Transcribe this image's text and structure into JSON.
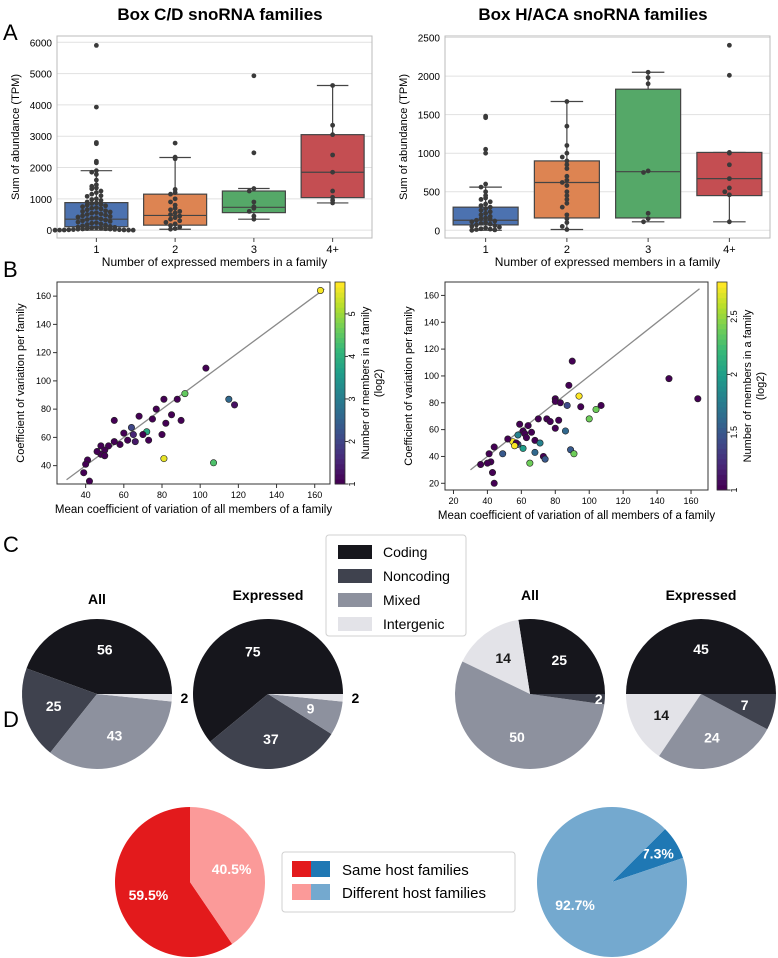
{
  "panel_labels": {
    "a": "A",
    "b": "B",
    "c": "C",
    "d": "D"
  },
  "colors": {
    "box_1": "#4c72b0",
    "box_2": "#dd8452",
    "box_3": "#55a868",
    "box_4": "#c44e52",
    "coding": "#16161c",
    "noncoding": "#3f424e",
    "mixed": "#8d919e",
    "intergenic": "#e3e3e8",
    "same_cd": "#e31a1c",
    "diff_cd": "#fb9a99",
    "same_haca": "#1f78b4",
    "diff_haca": "#74a9cf",
    "diagonal": "#8a8a8a",
    "grid": "#e1e1e1"
  },
  "legend_c": {
    "items": [
      "Coding",
      "Noncoding",
      "Mixed",
      "Intergenic"
    ]
  },
  "legend_d": {
    "items": [
      "Same host families",
      "Different host families"
    ]
  },
  "chart_data": [
    {
      "id": "a_left",
      "type": "box",
      "title": "Box C/D snoRNA families",
      "xlabel": "Number of expressed members in a family",
      "ylabel": "Sum of abundance (TPM)",
      "ylim": [
        -250,
        6200
      ],
      "yticks": [
        0,
        1000,
        2000,
        3000,
        4000,
        5000,
        6000
      ],
      "categories": [
        "1",
        "2",
        "3",
        "4+"
      ],
      "boxes": [
        {
          "q1": 110,
          "median": 350,
          "q3": 880,
          "whislo": 0,
          "whishi": 1900
        },
        {
          "q1": 160,
          "median": 470,
          "q3": 1150,
          "whislo": 30,
          "whishi": 2320
        },
        {
          "q1": 560,
          "median": 730,
          "q3": 1250,
          "whislo": 350,
          "whishi": 1330
        },
        {
          "q1": 1040,
          "median": 1850,
          "q3": 3050,
          "whislo": 870,
          "whishi": 4620
        }
      ],
      "points": [
        [
          5900,
          3930,
          2800,
          2760,
          2200,
          2150,
          1900,
          1850,
          1780,
          1600,
          1450,
          1400,
          1350,
          1320,
          1250,
          1200,
          1150,
          1100,
          1080,
          1000,
          980,
          950,
          900,
          870,
          850,
          820,
          800,
          780,
          750,
          720,
          700,
          680,
          650,
          620,
          600,
          580,
          560,
          540,
          520,
          500,
          480,
          460,
          440,
          420,
          400,
          380,
          360,
          340,
          320,
          300,
          280,
          260,
          240,
          220,
          200,
          180,
          160,
          140,
          120,
          100,
          90,
          80,
          70,
          60,
          50,
          45,
          40,
          35,
          30,
          25,
          20,
          15,
          10,
          8,
          5,
          3,
          2,
          1,
          0
        ],
        [
          2780,
          2330,
          2280,
          1300,
          1200,
          1150,
          1000,
          900,
          800,
          700,
          650,
          600,
          550,
          500,
          450,
          400,
          350,
          300,
          250,
          200,
          150,
          100,
          50,
          30
        ],
        [
          4930,
          2470,
          1330,
          1250,
          900,
          750,
          700,
          600,
          450,
          350
        ],
        [
          4620,
          3350,
          3050,
          2400,
          1850,
          1250,
          1050,
          950,
          870
        ]
      ]
    },
    {
      "id": "a_right",
      "type": "box",
      "title": "Box H/ACA snoRNA families",
      "xlabel": "Number of expressed members in a family",
      "ylabel": "Sum of abundance (TPM)",
      "ylim": [
        -100,
        2520
      ],
      "yticks": [
        0,
        500,
        1000,
        1500,
        2000,
        2500
      ],
      "categories": [
        "1",
        "2",
        "3",
        "4+"
      ],
      "boxes": [
        {
          "q1": 70,
          "median": 130,
          "q3": 300,
          "whislo": 0,
          "whishi": 560
        },
        {
          "q1": 160,
          "median": 620,
          "q3": 900,
          "whislo": 10,
          "whishi": 1670
        },
        {
          "q1": 160,
          "median": 760,
          "q3": 1830,
          "whislo": 110,
          "whishi": 2050
        },
        {
          "q1": 450,
          "median": 670,
          "q3": 1010,
          "whislo": 110,
          "whishi": 1010
        }
      ],
      "points": [
        [
          1480,
          1460,
          1050,
          1000,
          600,
          560,
          500,
          450,
          420,
          400,
          370,
          340,
          320,
          300,
          280,
          260,
          240,
          220,
          200,
          180,
          160,
          150,
          140,
          130,
          120,
          110,
          100,
          90,
          80,
          70,
          60,
          50,
          40,
          30,
          20,
          15,
          10,
          5,
          0
        ],
        [
          1670,
          1350,
          1100,
          1000,
          950,
          900,
          850,
          800,
          700,
          650,
          620,
          580,
          500,
          450,
          400,
          350,
          300,
          200,
          150,
          100,
          50,
          10
        ],
        [
          2050,
          1980,
          1900,
          770,
          750,
          220,
          150,
          110
        ],
        [
          2400,
          2010,
          1010,
          1000,
          850,
          670,
          550,
          500,
          460,
          110
        ]
      ]
    },
    {
      "id": "b_left",
      "type": "scatter",
      "xlabel": "Mean coefficient of variation of all members of a family",
      "ylabel": "Coefficient of variation per family",
      "xlim": [
        25,
        168
      ],
      "ylim": [
        27,
        170
      ],
      "xticks": [
        40,
        60,
        80,
        100,
        120,
        140,
        160
      ],
      "yticks": [
        40,
        60,
        80,
        100,
        120,
        140,
        160
      ],
      "diagonal": [
        [
          30,
          30
        ],
        [
          165,
          165
        ]
      ],
      "colorbar": {
        "label": "Number of members in a family (log2)",
        "min": 1,
        "max": 5.75,
        "ticks": [
          1,
          2,
          3,
          4,
          5
        ]
      },
      "points": [
        {
          "x": 163,
          "y": 164,
          "c": 5.7
        },
        {
          "x": 103,
          "y": 109,
          "c": 1.0
        },
        {
          "x": 92,
          "y": 91,
          "c": 4.6
        },
        {
          "x": 115,
          "y": 87,
          "c": 2.6
        },
        {
          "x": 118,
          "y": 83,
          "c": 1.2
        },
        {
          "x": 81,
          "y": 87,
          "c": 1.0
        },
        {
          "x": 77,
          "y": 80,
          "c": 1.0
        },
        {
          "x": 88,
          "y": 87,
          "c": 1.0
        },
        {
          "x": 85,
          "y": 76,
          "c": 1.0
        },
        {
          "x": 90,
          "y": 72,
          "c": 1.0
        },
        {
          "x": 75,
          "y": 73,
          "c": 1.0
        },
        {
          "x": 82,
          "y": 70,
          "c": 1.0
        },
        {
          "x": 68,
          "y": 75,
          "c": 1.0
        },
        {
          "x": 55,
          "y": 72,
          "c": 1.0
        },
        {
          "x": 72,
          "y": 64,
          "c": 3.9
        },
        {
          "x": 64,
          "y": 67,
          "c": 2.0
        },
        {
          "x": 65,
          "y": 62,
          "c": 1.5
        },
        {
          "x": 60,
          "y": 63,
          "c": 1.0
        },
        {
          "x": 70,
          "y": 62,
          "c": 1.0
        },
        {
          "x": 80,
          "y": 62,
          "c": 1.0
        },
        {
          "x": 62,
          "y": 58,
          "c": 1.0
        },
        {
          "x": 66,
          "y": 57,
          "c": 1.3
        },
        {
          "x": 58,
          "y": 55,
          "c": 1.0
        },
        {
          "x": 55,
          "y": 57,
          "c": 1.0
        },
        {
          "x": 52,
          "y": 54,
          "c": 1.0
        },
        {
          "x": 48,
          "y": 54,
          "c": 1.0
        },
        {
          "x": 50,
          "y": 51,
          "c": 1.0
        },
        {
          "x": 48,
          "y": 48,
          "c": 1.0
        },
        {
          "x": 50,
          "y": 47,
          "c": 1.0
        },
        {
          "x": 46,
          "y": 50,
          "c": 1.0
        },
        {
          "x": 41,
          "y": 44,
          "c": 1.0
        },
        {
          "x": 40,
          "y": 41,
          "c": 1.0
        },
        {
          "x": 39,
          "y": 35,
          "c": 1.0
        },
        {
          "x": 42,
          "y": 29,
          "c": 1.0
        },
        {
          "x": 81,
          "y": 45,
          "c": 5.6
        },
        {
          "x": 107,
          "y": 42,
          "c": 4.4
        },
        {
          "x": 73,
          "y": 58,
          "c": 1.0
        }
      ]
    },
    {
      "id": "b_right",
      "type": "scatter",
      "xlabel": "Mean coefficient of variation of all members of a family",
      "ylabel": "Coefficient of variation per family",
      "xlim": [
        15,
        170
      ],
      "ylim": [
        15,
        170
      ],
      "xticks": [
        20,
        40,
        60,
        80,
        100,
        120,
        140,
        160
      ],
      "yticks": [
        20,
        40,
        60,
        80,
        100,
        120,
        140,
        160
      ],
      "diagonal": [
        [
          30,
          30
        ],
        [
          165,
          165
        ]
      ],
      "colorbar": {
        "label": "Number of members in a family (log2)",
        "min": 1,
        "max": 2.8,
        "ticks": [
          1.0,
          1.5,
          2.0,
          2.5
        ]
      },
      "points": [
        {
          "x": 147,
          "y": 98,
          "c": 1.0
        },
        {
          "x": 164,
          "y": 83,
          "c": 1.0
        },
        {
          "x": 90,
          "y": 111,
          "c": 1.0
        },
        {
          "x": 88,
          "y": 93,
          "c": 1.0
        },
        {
          "x": 94,
          "y": 85,
          "c": 2.8
        },
        {
          "x": 80,
          "y": 83,
          "c": 1.0
        },
        {
          "x": 80,
          "y": 81,
          "c": 1.0
        },
        {
          "x": 83,
          "y": 80,
          "c": 1.0
        },
        {
          "x": 104,
          "y": 75,
          "c": 2.4
        },
        {
          "x": 107,
          "y": 78,
          "c": 1.0
        },
        {
          "x": 87,
          "y": 78,
          "c": 1.4
        },
        {
          "x": 95,
          "y": 77,
          "c": 1.0
        },
        {
          "x": 70,
          "y": 68,
          "c": 1.0
        },
        {
          "x": 75,
          "y": 68,
          "c": 1.0
        },
        {
          "x": 77,
          "y": 66,
          "c": 1.0
        },
        {
          "x": 59,
          "y": 64,
          "c": 1.0
        },
        {
          "x": 64,
          "y": 63,
          "c": 1.0
        },
        {
          "x": 61,
          "y": 59,
          "c": 1.0
        },
        {
          "x": 62,
          "y": 57,
          "c": 1.0
        },
        {
          "x": 66,
          "y": 58,
          "c": 1.0
        },
        {
          "x": 58,
          "y": 56,
          "c": 1.8
        },
        {
          "x": 63,
          "y": 54,
          "c": 1.0
        },
        {
          "x": 80,
          "y": 61,
          "c": 1.0
        },
        {
          "x": 86,
          "y": 59,
          "c": 1.6
        },
        {
          "x": 68,
          "y": 52,
          "c": 1.0
        },
        {
          "x": 55,
          "y": 51,
          "c": 2.8
        },
        {
          "x": 58,
          "y": 49,
          "c": 1.5
        },
        {
          "x": 57,
          "y": 50,
          "c": 1.0
        },
        {
          "x": 52,
          "y": 53,
          "c": 1.0
        },
        {
          "x": 71,
          "y": 50,
          "c": 1.8
        },
        {
          "x": 56,
          "y": 48,
          "c": 2.8
        },
        {
          "x": 61,
          "y": 46,
          "c": 2.0
        },
        {
          "x": 49,
          "y": 42,
          "c": 1.5
        },
        {
          "x": 68,
          "y": 43,
          "c": 1.6
        },
        {
          "x": 73,
          "y": 40,
          "c": 1.0
        },
        {
          "x": 74,
          "y": 38,
          "c": 1.5
        },
        {
          "x": 44,
          "y": 47,
          "c": 1.0
        },
        {
          "x": 41,
          "y": 42,
          "c": 1.0
        },
        {
          "x": 36,
          "y": 34,
          "c": 1.0
        },
        {
          "x": 42,
          "y": 36,
          "c": 1.0
        },
        {
          "x": 40,
          "y": 35,
          "c": 1.0
        },
        {
          "x": 43,
          "y": 28,
          "c": 1.0
        },
        {
          "x": 44,
          "y": 20,
          "c": 1.0
        },
        {
          "x": 65,
          "y": 35,
          "c": 2.4
        },
        {
          "x": 89,
          "y": 45,
          "c": 1.5
        },
        {
          "x": 91,
          "y": 42,
          "c": 2.4
        },
        {
          "x": 82,
          "y": 67,
          "c": 1.0
        },
        {
          "x": 100,
          "y": 68,
          "c": 2.4
        }
      ]
    },
    {
      "id": "c_cd_all",
      "type": "pie",
      "title": "All",
      "labels": [
        "Coding",
        "Noncoding",
        "Mixed",
        "Intergenic"
      ],
      "values": [
        56,
        25,
        43,
        2
      ],
      "label_colors": [
        "#ffffff",
        "#ffffff",
        "#ffffff",
        "#000000"
      ]
    },
    {
      "id": "c_cd_expr",
      "type": "pie",
      "title": "Expressed",
      "labels": [
        "Coding",
        "Noncoding",
        "Mixed",
        "Intergenic"
      ],
      "values": [
        75,
        37,
        9,
        2
      ],
      "label_colors": [
        "#ffffff",
        "#ffffff",
        "#ffffff",
        "#000000"
      ]
    },
    {
      "id": "c_haca_all",
      "type": "pie",
      "title": "All",
      "labels": [
        "Coding",
        "Intergenic",
        "Mixed",
        "Noncoding"
      ],
      "values": [
        25,
        14,
        50,
        2
      ],
      "label_colors": [
        "#ffffff",
        "#1a1a1a",
        "#ffffff",
        "#ffffff"
      ]
    },
    {
      "id": "c_haca_expr",
      "type": "pie",
      "title": "Expressed",
      "labels": [
        "Coding",
        "Intergenic",
        "Mixed",
        "Noncoding"
      ],
      "values": [
        45,
        14,
        24,
        7
      ],
      "label_colors": [
        "#ffffff",
        "#1a1a1a",
        "#ffffff",
        "#ffffff"
      ]
    },
    {
      "id": "d_cd",
      "type": "pie",
      "labels": [
        "Same host families",
        "Different host families"
      ],
      "values": [
        59.5,
        40.5
      ],
      "value_labels": [
        "59.5%",
        "40.5%"
      ]
    },
    {
      "id": "d_haca",
      "type": "pie",
      "labels": [
        "Same host families",
        "Different host families"
      ],
      "values": [
        7.3,
        92.7
      ],
      "value_labels": [
        "7.3%",
        "92.7%"
      ]
    }
  ]
}
